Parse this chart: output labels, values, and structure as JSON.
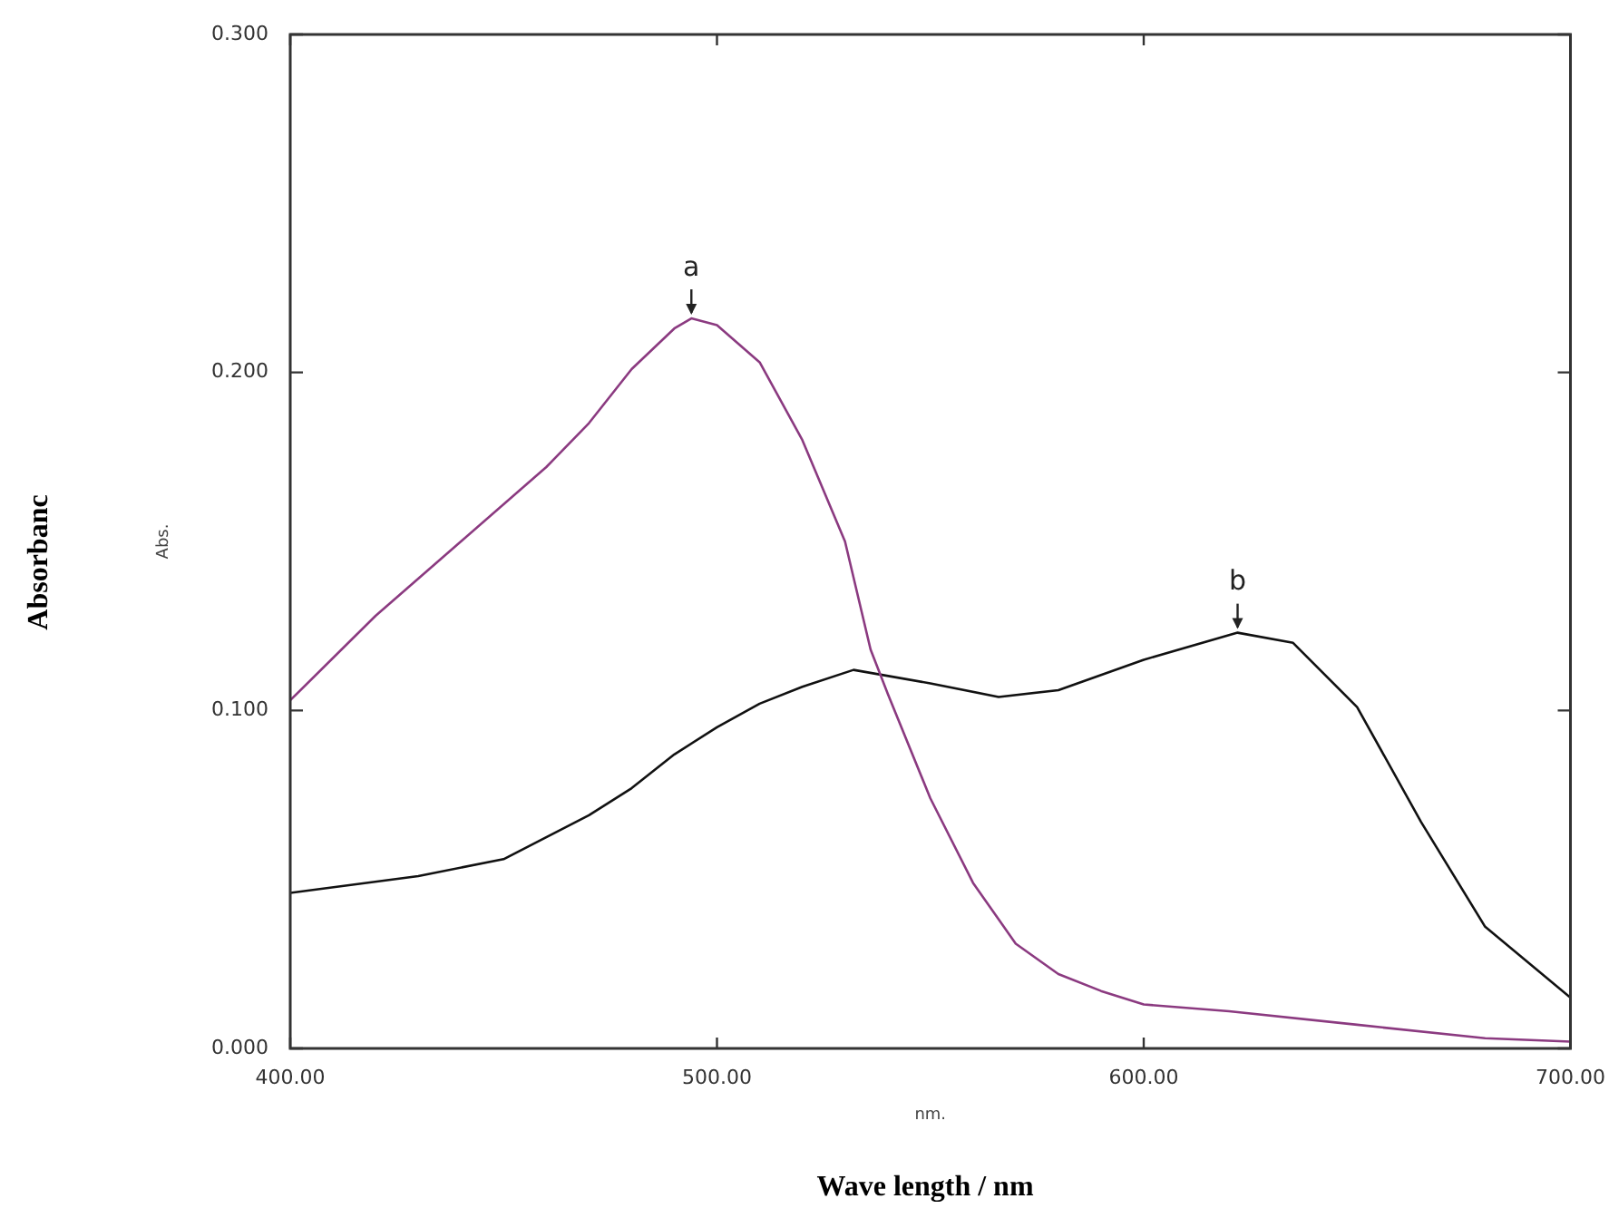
{
  "chart_data": {
    "type": "line",
    "xlabel": "nm.",
    "ylabel": "Abs.",
    "xlim": [
      400,
      700
    ],
    "ylim": [
      0,
      0.3
    ],
    "xticks": [
      {
        "value": 400,
        "label": "400.00"
      },
      {
        "value": 500,
        "label": "500.00"
      },
      {
        "value": 600,
        "label": "600.00"
      },
      {
        "value": 700,
        "label": "700.00"
      }
    ],
    "yticks": [
      {
        "value": 0,
        "label": "0.000"
      },
      {
        "value": 0.1,
        "label": "0.100"
      },
      {
        "value": 0.2,
        "label": "0.200"
      },
      {
        "value": 0.3,
        "label": "0.300"
      }
    ],
    "grid": false,
    "legend": false,
    "marker": "none",
    "line_style": "solid",
    "series": [
      {
        "color": "#8b3a80",
        "x": [
          400,
          420,
          440,
          460,
          470,
          480,
          490,
          494,
          500,
          510,
          520,
          530,
          536,
          540,
          550,
          560,
          570,
          580,
          590,
          600,
          620,
          650,
          680,
          700
        ],
        "values": [
          0.103,
          0.128,
          0.15,
          0.172,
          0.185,
          0.201,
          0.213,
          0.216,
          0.214,
          0.203,
          0.18,
          0.15,
          0.118,
          0.105,
          0.074,
          0.049,
          0.031,
          0.022,
          0.017,
          0.013,
          0.011,
          0.007,
          0.003,
          0.002
        ]
      },
      {
        "color": "#111111",
        "x": [
          400,
          430,
          450,
          470,
          480,
          490,
          500,
          510,
          520,
          532,
          550,
          566,
          580,
          600,
          622,
          635,
          650,
          665,
          680,
          700
        ],
        "values": [
          0.046,
          0.051,
          0.056,
          0.069,
          0.077,
          0.087,
          0.095,
          0.102,
          0.107,
          0.112,
          0.108,
          0.104,
          0.106,
          0.115,
          0.123,
          0.12,
          0.101,
          0.067,
          0.036,
          0.015
        ]
      }
    ],
    "annotations": [
      {
        "text": "a",
        "x": 494,
        "y": 0.216
      },
      {
        "text": "b",
        "x": 622,
        "y": 0.123
      },
      "Absorbanc",
      "Wave length / nm"
    ]
  }
}
